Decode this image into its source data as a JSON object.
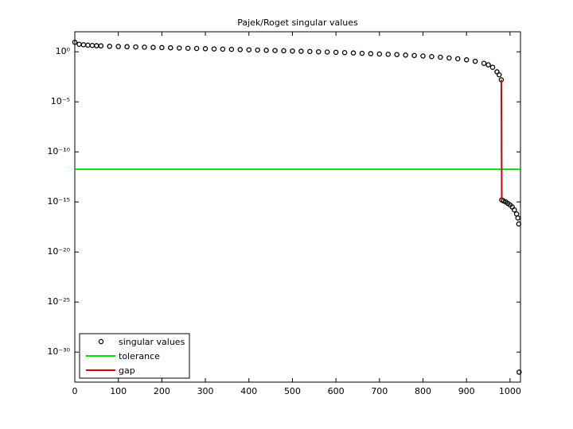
{
  "chart_data": {
    "type": "line",
    "title": "Pajek/Roget singular values",
    "xlim": [
      0,
      1024
    ],
    "xticks": [
      0,
      100,
      200,
      300,
      400,
      500,
      600,
      700,
      800,
      900,
      1000
    ],
    "ylim": [
      1e-33,
      100
    ],
    "log_y": true,
    "yticks": [
      {
        "value": 1e-30,
        "label": "10⁻³⁰"
      },
      {
        "value": 1e-25,
        "label": "10⁻²⁵"
      },
      {
        "value": 1e-20,
        "label": "10⁻²⁰"
      },
      {
        "value": 1e-15,
        "label": "10⁻¹⁵"
      },
      {
        "value": 1e-10,
        "label": "10⁻¹⁰"
      },
      {
        "value": 1e-05,
        "label": "10⁻⁵"
      },
      {
        "value": 1,
        "label": "10⁰"
      }
    ],
    "legend": "lower left",
    "series": [
      {
        "name": "singular values",
        "color": "#000000",
        "mode": "markers",
        "x": [
          0,
          10,
          20,
          30,
          40,
          50,
          60,
          80,
          100,
          120,
          140,
          160,
          180,
          200,
          220,
          240,
          260,
          280,
          300,
          320,
          340,
          360,
          380,
          400,
          420,
          440,
          460,
          480,
          500,
          520,
          540,
          560,
          580,
          600,
          620,
          640,
          660,
          680,
          700,
          720,
          740,
          760,
          780,
          800,
          820,
          840,
          860,
          880,
          900,
          920,
          940,
          950,
          960,
          970,
          975,
          980,
          981,
          985,
          990,
          995,
          1000,
          1005,
          1010,
          1015,
          1018,
          1020,
          1021
        ],
        "values": [
          8.91,
          5.62,
          5.01,
          4.57,
          4.27,
          4.07,
          3.89,
          3.55,
          3.39,
          3.22,
          3.05,
          2.9,
          2.75,
          2.63,
          2.5,
          2.38,
          2.26,
          2.15,
          2.04,
          1.94,
          1.85,
          1.75,
          1.67,
          1.58,
          1.5,
          1.42,
          1.34,
          1.27,
          1.2,
          1.13,
          1.07,
          1.0,
          0.946,
          0.891,
          0.824,
          0.762,
          0.705,
          0.652,
          0.603,
          0.562,
          0.525,
          0.468,
          0.427,
          0.38,
          0.331,
          0.288,
          0.24,
          0.2,
          0.158,
          0.112,
          0.0708,
          0.0501,
          0.0282,
          0.01,
          0.005,
          0.00158,
          1.6e-15,
          1.26e-15,
          1e-15,
          7.1e-16,
          5e-16,
          3.2e-16,
          1.6e-16,
          6.3e-17,
          2.5e-17,
          6.3e-18,
          1e-32
        ]
      },
      {
        "name": "tolerance",
        "color": "#00e000",
        "mode": "line",
        "x": [
          0,
          1024
        ],
        "values": [
          1.8e-12,
          1.8e-12
        ]
      },
      {
        "name": "gap",
        "color": "#e00000",
        "mode": "line",
        "x": [
          980,
          981
        ],
        "values": [
          0.00158,
          1.6e-15
        ]
      }
    ]
  }
}
